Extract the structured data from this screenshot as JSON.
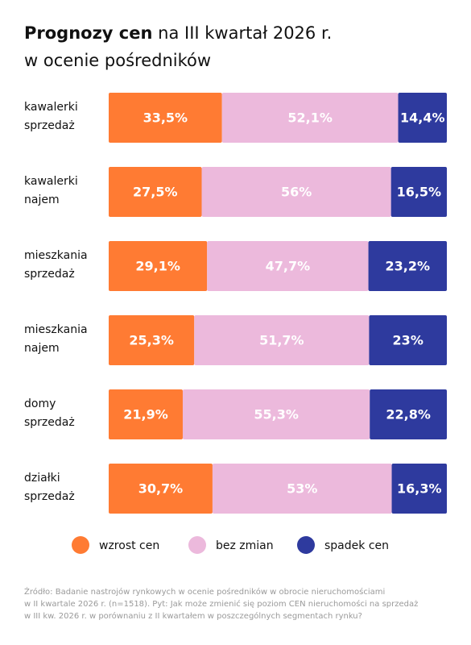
{
  "chart_data": {
    "type": "stacked-bar-horizontal",
    "title": "Prognozy cen",
    "subtitle": "na III kwartał 2026 r.\nw ocenie pośredników",
    "categories": [
      "kawalerki\nsprzedaż",
      "kawalerki\nnajem",
      "mieszkania\nsprzedaż",
      "mieszkania\nnajem",
      "domy\nsprzedaż",
      "działki\nsprzedaż"
    ],
    "xlim": [
      0,
      100
    ],
    "series": [
      {
        "name": "wzrost cen",
        "color": "#ff7b33",
        "values": [
          33.5,
          27.5,
          29.1,
          25.3,
          21.9,
          30.7
        ],
        "value_labels": [
          "33,5%",
          "27,5%",
          "29,1%",
          "25,3%",
          "21,9%",
          "30,7%"
        ]
      },
      {
        "name": "bez zmian",
        "color": "#ecb9dc",
        "values": [
          52.1,
          56,
          47.7,
          51.7,
          55.3,
          53
        ],
        "value_labels": [
          "52,1%",
          "56%",
          "47,7%",
          "51,7%",
          "55,3%",
          "53%"
        ]
      },
      {
        "name": "spadek cen",
        "color": "#2e3a9e",
        "values": [
          14.4,
          16.5,
          23.2,
          23,
          22.8,
          16.3
        ],
        "value_labels": [
          "14,4%",
          "16,5%",
          "23,2%",
          "23%",
          "22,8%",
          "16,3%"
        ]
      }
    ],
    "source": "Źródło: Badanie nastrojów rynkowych w ocenie  pośredników w obrocie nieruchomościami\nw II kwartale 2026 r. (n=1518). Pyt: Jak może zmienić się poziom CEN nieruchomości na sprzedaż\nw III kw. 2026 r. w porównaniu z II kwartałem w poszczególnych segmentach rynku?"
  }
}
